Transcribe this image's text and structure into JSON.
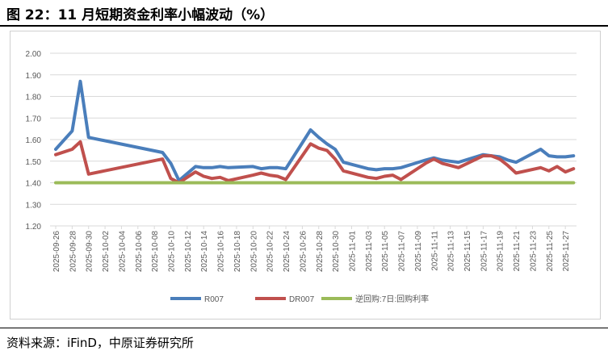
{
  "title": "图 22：11 月短期资金利率小幅波动（%）",
  "source": "资料来源：iFinD，中原证券研究所",
  "chart_data": {
    "type": "line",
    "title": "",
    "xlabel": "",
    "ylabel": "",
    "ylim": [
      1.2,
      2.0
    ],
    "y_ticks": [
      "2.00",
      "1.90",
      "1.80",
      "1.70",
      "1.60",
      "1.50",
      "1.40",
      "1.30",
      "1.20"
    ],
    "x_range": [
      "2025-09-26",
      "2025-11-28"
    ],
    "x_ticks": [
      "2025-09-26",
      "2025-09-28",
      "2025-09-30",
      "2025-10-02",
      "2025-10-04",
      "2025-10-06",
      "2025-10-08",
      "2025-10-10",
      "2025-10-12",
      "2025-10-14",
      "2025-10-16",
      "2025-10-18",
      "2025-10-20",
      "2025-10-22",
      "2025-10-24",
      "2025-10-26",
      "2025-10-28",
      "2025-10-30",
      "2025-11-01",
      "2025-11-03",
      "2025-11-05",
      "2025-11-07",
      "2025-11-09",
      "2025-11-11",
      "2025-11-13",
      "2025-11-15",
      "2025-11-17",
      "2025-11-19",
      "2025-11-21",
      "2025-11-23",
      "2025-11-25",
      "2025-11-27"
    ],
    "grid": true,
    "legend_position": "bottom",
    "x": [
      "2025-09-26",
      "2025-09-28",
      "2025-09-29",
      "2025-09-30",
      "2025-10-09",
      "2025-10-10",
      "2025-10-11",
      "2025-10-13",
      "2025-10-14",
      "2025-10-15",
      "2025-10-16",
      "2025-10-17",
      "2025-10-20",
      "2025-10-21",
      "2025-10-22",
      "2025-10-23",
      "2025-10-24",
      "2025-10-27",
      "2025-10-28",
      "2025-10-29",
      "2025-10-30",
      "2025-10-31",
      "2025-11-03",
      "2025-11-04",
      "2025-11-05",
      "2025-11-06",
      "2025-11-07",
      "2025-11-10",
      "2025-11-11",
      "2025-11-12",
      "2025-11-13",
      "2025-11-14",
      "2025-11-17",
      "2025-11-18",
      "2025-11-19",
      "2025-11-20",
      "2025-11-21",
      "2025-11-24",
      "2025-11-25",
      "2025-11-26",
      "2025-11-27",
      "2025-11-28"
    ],
    "series": [
      {
        "name": "R007",
        "color": "#4a7ebb",
        "values": [
          1.555,
          1.64,
          1.87,
          1.61,
          1.54,
          1.49,
          1.41,
          1.475,
          1.47,
          1.47,
          1.475,
          1.47,
          1.475,
          1.465,
          1.47,
          1.47,
          1.465,
          1.645,
          1.61,
          1.58,
          1.555,
          1.495,
          1.465,
          1.46,
          1.465,
          1.465,
          1.47,
          1.505,
          1.515,
          1.505,
          1.5,
          1.495,
          1.53,
          1.525,
          1.52,
          1.505,
          1.495,
          1.555,
          1.525,
          1.52,
          1.52,
          1.525
        ]
      },
      {
        "name": "DR007",
        "color": "#c0504d",
        "values": [
          1.53,
          1.555,
          1.59,
          1.44,
          1.51,
          1.42,
          1.4,
          1.45,
          1.43,
          1.42,
          1.425,
          1.41,
          1.435,
          1.445,
          1.435,
          1.43,
          1.415,
          1.58,
          1.56,
          1.55,
          1.51,
          1.455,
          1.425,
          1.42,
          1.43,
          1.435,
          1.415,
          1.49,
          1.51,
          1.49,
          1.48,
          1.47,
          1.525,
          1.525,
          1.51,
          1.48,
          1.445,
          1.47,
          1.455,
          1.475,
          1.45,
          1.465
        ]
      },
      {
        "name": "逆回购:7日:回购利率",
        "color": "#9bbb59",
        "values": [
          1.4,
          1.4,
          1.4,
          1.4,
          1.4,
          1.4,
          1.4,
          1.4,
          1.4,
          1.4,
          1.4,
          1.4,
          1.4,
          1.4,
          1.4,
          1.4,
          1.4,
          1.4,
          1.4,
          1.4,
          1.4,
          1.4,
          1.4,
          1.4,
          1.4,
          1.4,
          1.4,
          1.4,
          1.4,
          1.4,
          1.4,
          1.4,
          1.4,
          1.4,
          1.4,
          1.4,
          1.4,
          1.4,
          1.4,
          1.4,
          1.4,
          1.4
        ]
      }
    ]
  }
}
